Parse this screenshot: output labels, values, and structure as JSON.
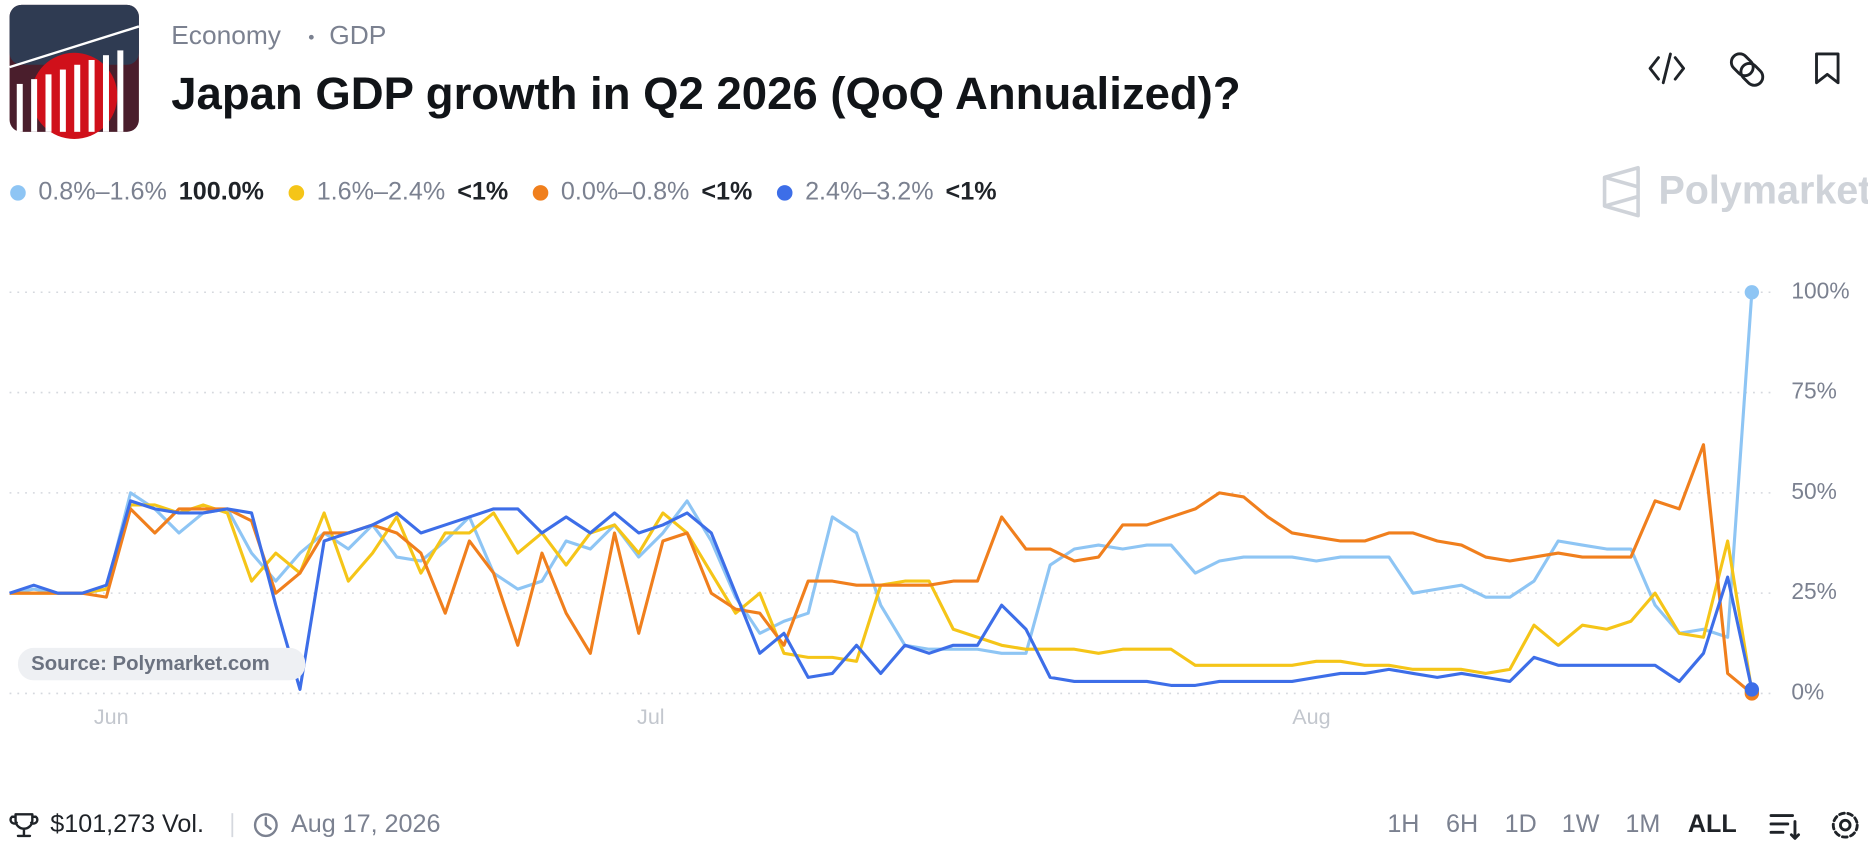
{
  "header": {
    "category": "Economy",
    "subcategory": "GDP",
    "title": "Japan GDP growth in Q2 2026 (QoQ Annualized)?"
  },
  "brand": "Polymarket",
  "chart_data": {
    "type": "line",
    "source": "Source: Polymarket.com",
    "xlim": [
      0,
      72
    ],
    "xticks": [
      {
        "value": 4.2,
        "label": "Jun"
      },
      {
        "value": 26.5,
        "label": "Jul"
      },
      {
        "value": 53.8,
        "label": "Aug"
      }
    ],
    "ylim": [
      0,
      100
    ],
    "yticks": [
      {
        "value": 0,
        "label": "0%"
      },
      {
        "value": 25,
        "label": "25%"
      },
      {
        "value": 50,
        "label": "50%"
      },
      {
        "value": 75,
        "label": "75%"
      },
      {
        "value": 100,
        "label": "100%"
      }
    ],
    "grid": true,
    "series": [
      {
        "name": "0.8%–1.6%",
        "current_label": "100.0%",
        "color": "#8ec5f4",
        "values": [
          25,
          26,
          25,
          25,
          26,
          50,
          46,
          40,
          45,
          46,
          35,
          28,
          35,
          40,
          36,
          42,
          34,
          33,
          38,
          44,
          30,
          26,
          28,
          38,
          36,
          42,
          34,
          40,
          48,
          38,
          24,
          15,
          18,
          20,
          44,
          40,
          22,
          12,
          11,
          11,
          11,
          10,
          10,
          32,
          36,
          37,
          36,
          37,
          37,
          30,
          33,
          34,
          34,
          34,
          33,
          34,
          34,
          34,
          25,
          26,
          27,
          24,
          24,
          28,
          38,
          37,
          36,
          36,
          22,
          15,
          16,
          14,
          100
        ]
      },
      {
        "name": "1.6%–2.4%",
        "current_label": "<1%",
        "color": "#f5c518",
        "values": [
          25,
          25,
          25,
          25,
          26,
          47,
          47,
          45,
          47,
          45,
          28,
          35,
          30,
          45,
          28,
          35,
          44,
          30,
          40,
          40,
          45,
          35,
          40,
          32,
          40,
          42,
          35,
          45,
          40,
          30,
          20,
          25,
          10,
          9,
          9,
          8,
          27,
          28,
          28,
          16,
          14,
          12,
          11,
          11,
          11,
          10,
          11,
          11,
          11,
          7,
          7,
          7,
          7,
          7,
          8,
          8,
          7,
          7,
          6,
          6,
          6,
          5,
          6,
          17,
          12,
          17,
          16,
          18,
          25,
          15,
          14,
          38,
          0.5
        ]
      },
      {
        "name": "0.0%–0.8%",
        "current_label": "<1%",
        "color": "#f07f1d",
        "values": [
          25,
          25,
          25,
          25,
          24,
          46,
          40,
          46,
          46,
          46,
          43,
          25,
          30,
          40,
          40,
          42,
          40,
          35,
          20,
          38,
          30,
          12,
          35,
          20,
          10,
          40,
          15,
          38,
          40,
          25,
          21,
          20,
          12,
          28,
          28,
          27,
          27,
          27,
          27,
          28,
          28,
          44,
          36,
          36,
          33,
          34,
          42,
          42,
          44,
          46,
          50,
          49,
          44,
          40,
          39,
          38,
          38,
          40,
          40,
          38,
          37,
          34,
          33,
          34,
          35,
          34,
          34,
          34,
          48,
          46,
          62,
          5,
          0
        ]
      },
      {
        "name": "2.4%–3.2%",
        "current_label": "<1%",
        "color": "#3d6ee8",
        "values": [
          25,
          27,
          25,
          25,
          27,
          48,
          46,
          45,
          45,
          46,
          45,
          22,
          1,
          38,
          40,
          42,
          45,
          40,
          42,
          44,
          46,
          46,
          40,
          44,
          40,
          45,
          40,
          42,
          45,
          40,
          25,
          10,
          15,
          4,
          5,
          12,
          5,
          12,
          10,
          12,
          12,
          22,
          16,
          4,
          3,
          3,
          3,
          3,
          2,
          2,
          3,
          3,
          3,
          3,
          4,
          5,
          5,
          6,
          5,
          4,
          5,
          4,
          3,
          9,
          7,
          7,
          7,
          7,
          7,
          3,
          10,
          29,
          1
        ]
      }
    ]
  },
  "footer": {
    "volume": "$101,273 Vol.",
    "date": "Aug 17, 2026",
    "ranges": [
      "1H",
      "6H",
      "1D",
      "1W",
      "1M",
      "ALL"
    ],
    "selected_range": "ALL"
  }
}
